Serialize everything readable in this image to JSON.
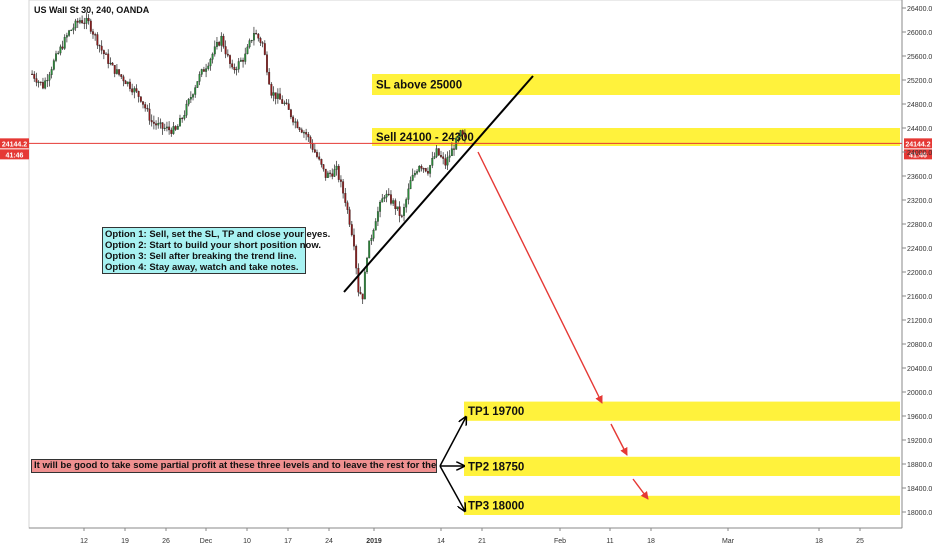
{
  "chart_data": {
    "type": "candlestick",
    "title": "US Wall St 30, 240, OANDA",
    "current_price": "24144.2",
    "countdown": "41:46",
    "ylim": [
      17900,
      26450
    ],
    "y_ticks": [
      "18000.0",
      "18400.0",
      "18800.0",
      "19200.0",
      "19600.0",
      "20000.0",
      "20400.0",
      "20800.0",
      "21200.0",
      "21600.0",
      "22000.0",
      "22400.0",
      "22800.0",
      "23200.0",
      "23600.0",
      "24000.0",
      "24400.0",
      "24800.0",
      "25200.0",
      "25600.0",
      "26000.0",
      "26400.0"
    ],
    "x_ticks": [
      "12",
      "19",
      "26",
      "Dec",
      "10",
      "17",
      "24",
      "2019",
      "14",
      "21",
      "Feb",
      "11",
      "18",
      "Mar",
      "18",
      "25"
    ],
    "candle_path": [
      [
        0,
        25300
      ],
      [
        5,
        25100
      ],
      [
        10,
        25500
      ],
      [
        17,
        26000
      ],
      [
        22,
        26200
      ],
      [
        26,
        26150
      ],
      [
        32,
        25700
      ],
      [
        37,
        25400
      ],
      [
        44,
        25150
      ],
      [
        50,
        24900
      ],
      [
        55,
        24500
      ],
      [
        60,
        24400
      ],
      [
        66,
        24350
      ],
      [
        70,
        24650
      ],
      [
        76,
        25200
      ],
      [
        81,
        25500
      ],
      [
        87,
        25900
      ],
      [
        92,
        25350
      ],
      [
        98,
        25600
      ],
      [
        102,
        26000
      ],
      [
        106,
        25800
      ],
      [
        110,
        25000
      ],
      [
        116,
        24800
      ],
      [
        121,
        24500
      ],
      [
        126,
        24300
      ],
      [
        130,
        24000
      ],
      [
        135,
        23600
      ],
      [
        140,
        23700
      ],
      [
        144,
        23200
      ],
      [
        148,
        22500
      ],
      [
        150,
        21700
      ],
      [
        152,
        21600
      ],
      [
        154,
        22300
      ],
      [
        158,
        22900
      ],
      [
        162,
        23300
      ],
      [
        166,
        23150
      ],
      [
        170,
        22900
      ],
      [
        174,
        23500
      ],
      [
        178,
        23800
      ],
      [
        182,
        23700
      ],
      [
        186,
        24000
      ],
      [
        190,
        23800
      ],
      [
        194,
        24100
      ],
      [
        197,
        24300
      ],
      [
        200,
        24144
      ]
    ],
    "zones": [
      {
        "label": "SL above 25000",
        "low": 24950,
        "high": 25300
      },
      {
        "label": "Sell 24100 - 24300",
        "low": 24100,
        "high": 24400
      },
      {
        "label": "TP1 19700",
        "low": 19520,
        "high": 19840
      },
      {
        "label": "TP2 18750",
        "low": 18600,
        "high": 18920
      },
      {
        "label": "TP3 18000",
        "low": 17950,
        "high": 18270
      }
    ],
    "options_text": [
      "Option 1: Sell, set the SL, TP and close your eyes.",
      "Option 2: Start to build your short position now.",
      "Option 3: Sell after breaking the trend line.",
      "Option 4: Stay away, watch and take notes."
    ],
    "partial_note": "It will be good to take some partial profit at these three levels and to leave the rest for the long run....",
    "colors": {
      "up": "#2b8c3a",
      "down": "#8f1b1b",
      "zone": "#fff23c",
      "price_line": "#e53935",
      "arrow": "#e53935",
      "info_bg": "#a8f2f2",
      "note_bg": "#ef9090"
    }
  }
}
